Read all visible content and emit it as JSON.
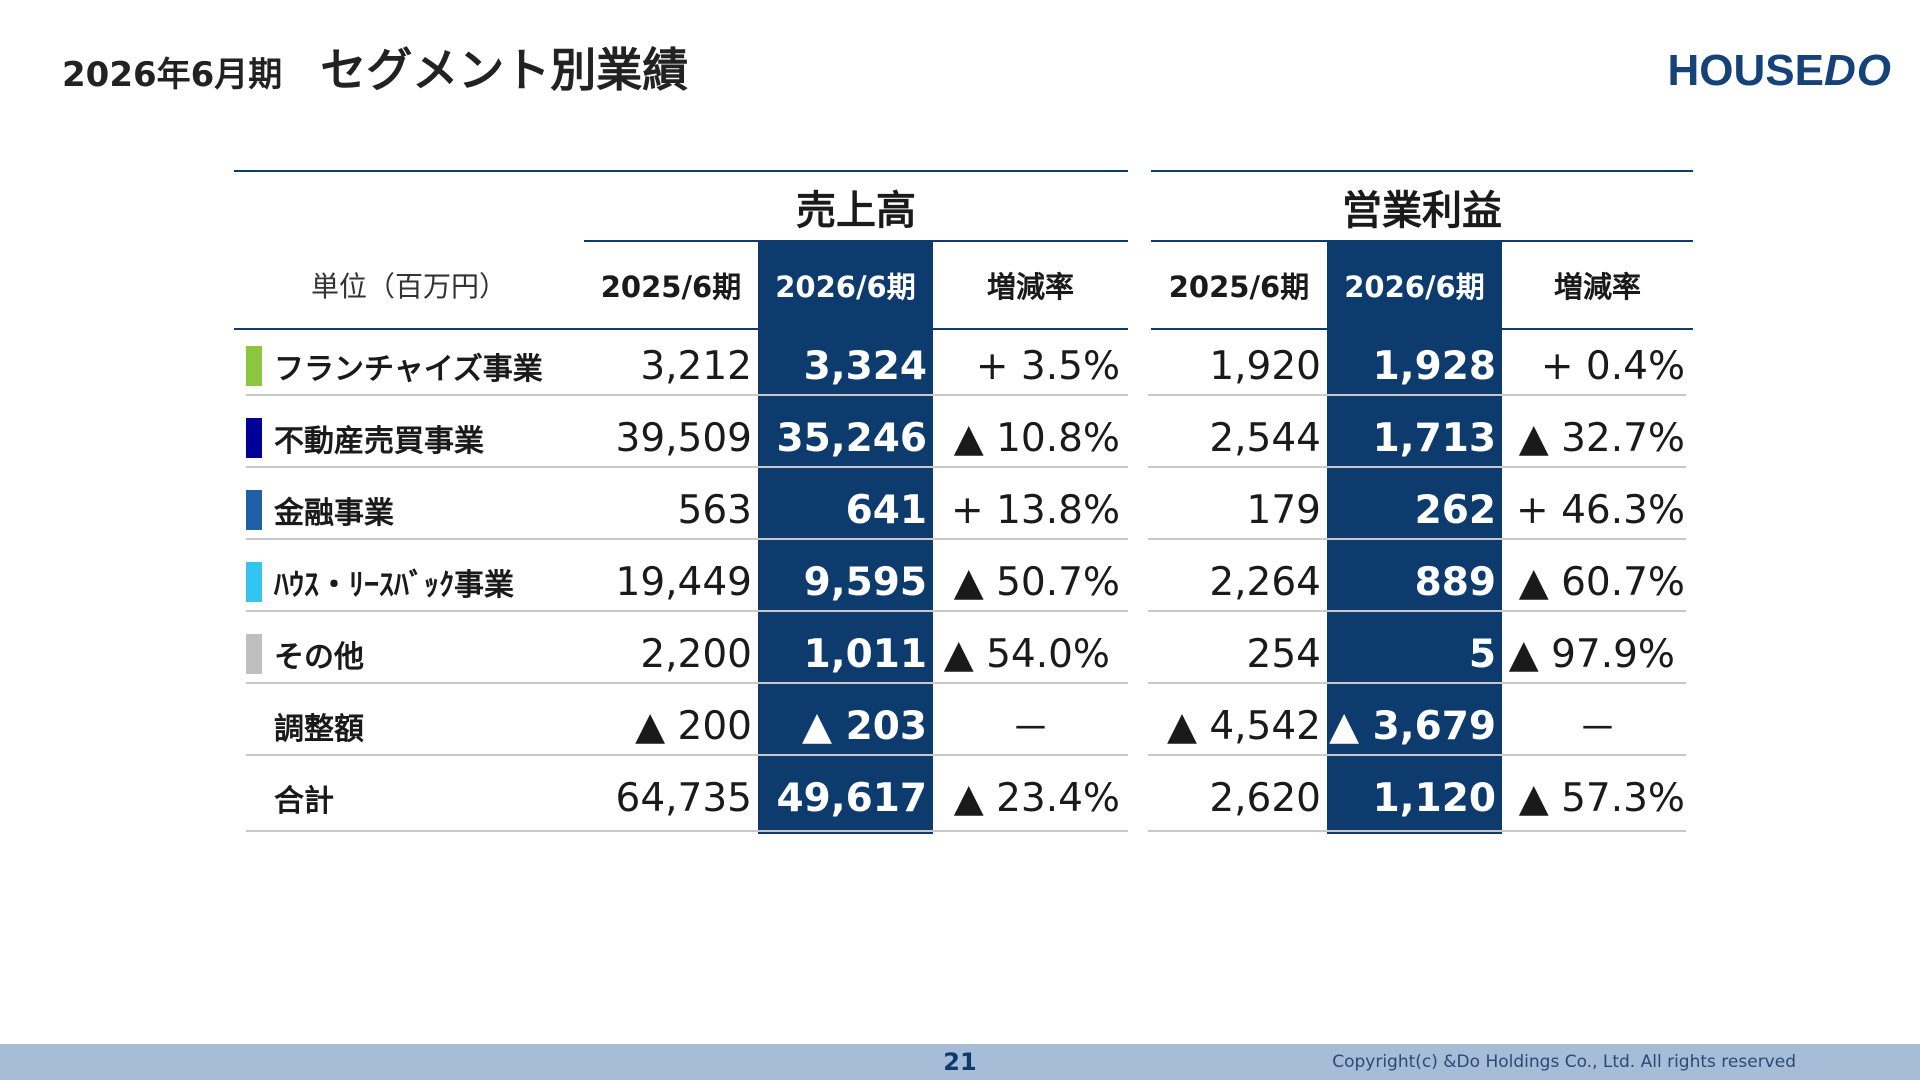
{
  "header": {
    "period": "2026年6月期",
    "title": "セグメント別業績",
    "logo_house": "HOUSE",
    "logo_do": "DO"
  },
  "table": {
    "unit_label": "単位（百万円）",
    "groups": {
      "sales": "売上高",
      "op_income": "営業利益"
    },
    "columns": {
      "prev": "2025/6期",
      "curr": "2026/6期",
      "rate": "増減率"
    },
    "rows": [
      {
        "label": "フランチャイズ事業",
        "bar_color": "#8cc63f",
        "sales": {
          "prev": "3,212",
          "curr": "3,324",
          "rate": "+ 3.5%"
        },
        "op": {
          "prev": "1,920",
          "curr": "1,928",
          "rate": "+ 0.4%"
        }
      },
      {
        "label": "不動産売買事業",
        "bar_color": "#000099",
        "sales": {
          "prev": "39,509",
          "curr": "35,246",
          "rate": "▲ 10.8%"
        },
        "op": {
          "prev": "2,544",
          "curr": "1,713",
          "rate": "▲ 32.7%"
        }
      },
      {
        "label": "金融事業",
        "bar_color": "#1f5fa8",
        "sales": {
          "prev": "563",
          "curr": "641",
          "rate": "+ 13.8%"
        },
        "op": {
          "prev": "179",
          "curr": "262",
          "rate": "+ 46.3%"
        }
      },
      {
        "label": "ﾊｳｽ・ﾘｰｽﾊﾞｯｸ事業",
        "bar_color": "#33c4f0",
        "sales": {
          "prev": "19,449",
          "curr": "9,595",
          "rate": "▲ 50.7%"
        },
        "op": {
          "prev": "2,264",
          "curr": "889",
          "rate": "▲ 60.7%"
        }
      },
      {
        "label": "その他",
        "bar_color": "#bfbfbf",
        "sales": {
          "prev": "2,200",
          "curr": "1,011",
          "rate": "▲ 54.0%"
        },
        "op": {
          "prev": "254",
          "curr": "5",
          "rate": "▲ 97.9%"
        }
      },
      {
        "label": "調整額",
        "bar_color": "",
        "sales": {
          "prev": "▲ 200",
          "curr": "▲ 203",
          "rate": "－"
        },
        "op": {
          "prev": "▲ 4,542",
          "curr": "▲ 3,679",
          "rate": "－"
        }
      },
      {
        "label": "合計",
        "bar_color": "",
        "sales": {
          "prev": "64,735",
          "curr": "49,617",
          "rate": "▲ 23.4%"
        },
        "op": {
          "prev": "2,620",
          "curr": "1,120",
          "rate": "▲ 57.3%"
        }
      }
    ]
  },
  "footer": {
    "page_number": "21",
    "copyright": "Copyright(c) &Do Holdings Co., Ltd. All rights reserved"
  }
}
